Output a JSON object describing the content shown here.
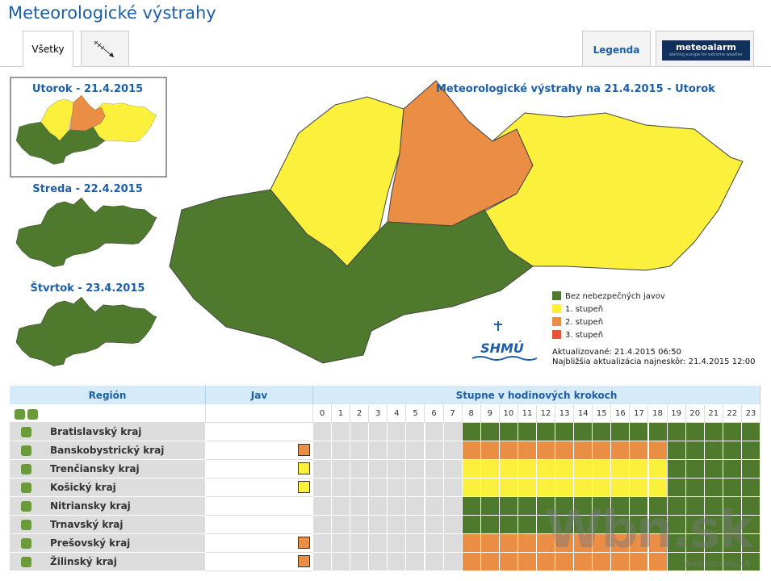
{
  "header": {
    "title": "Meteorologické výstrahy"
  },
  "tabs": {
    "all": "Všetky",
    "legend": "Legenda",
    "meteoalarm": "meteoalarm",
    "meteoalarm_tagline": "alerting europe for extreme weather"
  },
  "days": [
    "Utorok - 21.4.2015",
    "Streda - 22.4.2015",
    "Štvrtok - 23.4.2015"
  ],
  "map": {
    "title": "Meteorologické výstrahy na 21.4.2015 - Utorok",
    "legend": [
      {
        "label": "Bez nebezpečných javov",
        "color": "#4f7a2d"
      },
      {
        "label": "1. stupeň",
        "color": "#fbf13c"
      },
      {
        "label": "2. stupeň",
        "color": "#ea8d45"
      },
      {
        "label": "3. stupeň",
        "color": "#e8503a"
      }
    ],
    "logo": "SHMÚ",
    "updated": "Aktualizované: 21.4.2015 06:50",
    "next_update": "Najbližšia aktualizácia najneskôr: 21.4.2015 12:00"
  },
  "table": {
    "headers": [
      "Región",
      "Jav",
      "Stupne v hodinových krokoch"
    ],
    "hours": [
      0,
      1,
      2,
      3,
      4,
      5,
      6,
      7,
      8,
      9,
      10,
      11,
      12,
      13,
      14,
      15,
      16,
      17,
      18,
      19,
      20,
      21,
      22,
      23
    ],
    "rows": [
      {
        "region": "Bratislavský kraj",
        "warning": null,
        "levels": [
          null,
          null,
          null,
          null,
          null,
          null,
          null,
          null,
          0,
          0,
          0,
          0,
          0,
          0,
          0,
          0,
          0,
          0,
          0,
          0,
          0,
          0,
          0,
          0
        ]
      },
      {
        "region": "Banskobystrický kraj",
        "warning": 2,
        "levels": [
          null,
          null,
          null,
          null,
          null,
          null,
          null,
          null,
          2,
          2,
          2,
          2,
          2,
          2,
          2,
          2,
          2,
          2,
          2,
          0,
          0,
          0,
          0,
          0
        ]
      },
      {
        "region": "Trenčiansky kraj",
        "warning": 1,
        "levels": [
          null,
          null,
          null,
          null,
          null,
          null,
          null,
          null,
          1,
          1,
          1,
          1,
          1,
          1,
          1,
          1,
          1,
          1,
          1,
          0,
          0,
          0,
          0,
          0
        ]
      },
      {
        "region": "Košický kraj",
        "warning": 1,
        "levels": [
          null,
          null,
          null,
          null,
          null,
          null,
          null,
          null,
          1,
          1,
          1,
          1,
          1,
          1,
          1,
          1,
          1,
          1,
          1,
          0,
          0,
          0,
          0,
          0
        ]
      },
      {
        "region": "Nitriansky kraj",
        "warning": null,
        "levels": [
          null,
          null,
          null,
          null,
          null,
          null,
          null,
          null,
          0,
          0,
          0,
          0,
          0,
          0,
          0,
          0,
          0,
          0,
          0,
          0,
          0,
          0,
          0,
          0
        ]
      },
      {
        "region": "Trnavský kraj",
        "warning": null,
        "levels": [
          null,
          null,
          null,
          null,
          null,
          null,
          null,
          null,
          0,
          0,
          0,
          0,
          0,
          0,
          0,
          0,
          0,
          0,
          0,
          0,
          0,
          0,
          0,
          0
        ]
      },
      {
        "region": "Prešovský kraj",
        "warning": 2,
        "levels": [
          null,
          null,
          null,
          null,
          null,
          null,
          null,
          null,
          2,
          2,
          2,
          2,
          2,
          2,
          2,
          2,
          2,
          2,
          2,
          0,
          0,
          0,
          0,
          0
        ]
      },
      {
        "region": "Žilinský kraj",
        "warning": 2,
        "levels": [
          null,
          null,
          null,
          null,
          null,
          null,
          null,
          null,
          2,
          2,
          2,
          2,
          2,
          2,
          2,
          2,
          2,
          2,
          2,
          0,
          0,
          0,
          0,
          0
        ]
      }
    ]
  },
  "watermark": {
    "brand": "Wbn.sk",
    "site": "Webnoviny.sk"
  }
}
